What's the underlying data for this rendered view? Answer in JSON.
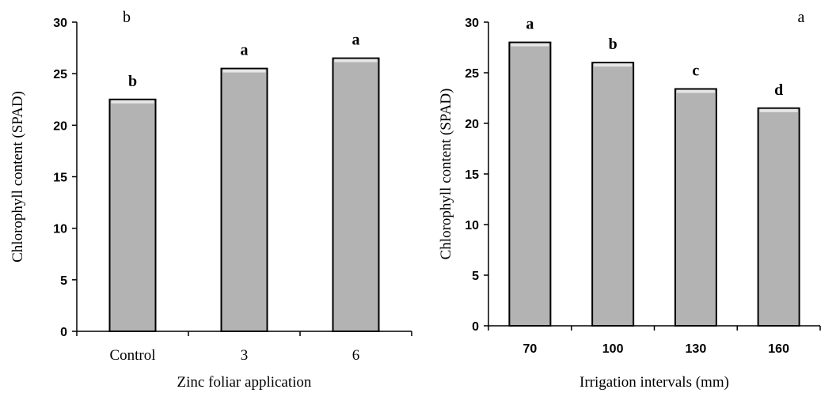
{
  "chart_data": [
    {
      "type": "bar",
      "panel_label": "b",
      "categories": [
        "Control",
        "3",
        "6"
      ],
      "values": [
        22.5,
        25.5,
        26.5
      ],
      "bar_labels": [
        "b",
        "a",
        "a"
      ],
      "xlabel": "Zinc foliar application",
      "ylabel": "Chlorophyll content (SPAD)",
      "ylim": [
        0,
        30
      ],
      "yticks": [
        0,
        5,
        10,
        15,
        20,
        25,
        30
      ],
      "bar_color": "#b3b3b3",
      "grid": false,
      "legend": "none"
    },
    {
      "type": "bar",
      "panel_label": "a",
      "categories": [
        "70",
        "100",
        "130",
        "160"
      ],
      "values": [
        28.0,
        26.0,
        23.4,
        21.5
      ],
      "bar_labels": [
        "a",
        "b",
        "c",
        "d"
      ],
      "xlabel": "Irrigation intervals (mm)",
      "ylabel": "Chlorophyll content (SPAD)",
      "ylim": [
        0,
        30
      ],
      "yticks": [
        0,
        5,
        10,
        15,
        20,
        25,
        30
      ],
      "bar_color": "#b3b3b3",
      "grid": false,
      "legend": "none"
    }
  ]
}
